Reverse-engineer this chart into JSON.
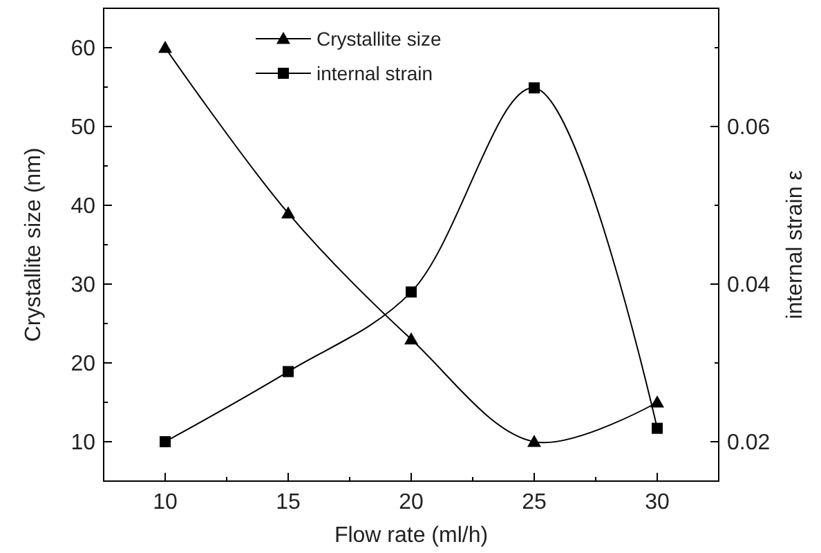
{
  "chart_data": {
    "type": "line",
    "xlabel": "Flow rate (ml/h)",
    "ylabel": "Crystallite size (nm)",
    "y2label": "internal strain ε",
    "x": [
      10,
      15,
      20,
      25,
      30
    ],
    "series": [
      {
        "name": "Crystallite size",
        "color": "#000000",
        "values": [
          60,
          39,
          23,
          10,
          15
        ],
        "marker": "triangle"
      },
      {
        "name": "internal strain",
        "color": "#000000",
        "values": [
          0.02,
          0.0289,
          0.039,
          0.0649,
          0.0217
        ],
        "marker": "square",
        "axis": "y2"
      }
    ],
    "xlim": [
      7.5,
      32.5
    ],
    "xticks": [
      10,
      {
        "value": 12.5,
        "label": null
      },
      15,
      {
        "value": 17.5,
        "label": null
      },
      20,
      {
        "value": 22.5,
        "label": null
      },
      25,
      {
        "value": 27.5,
        "label": null
      },
      30
    ],
    "ylim": [
      5,
      65
    ],
    "yticks": [
      10,
      {
        "value": 15,
        "label": null
      },
      20,
      {
        "value": 25,
        "label": null
      },
      30,
      {
        "value": 35,
        "label": null
      },
      40,
      {
        "value": 45,
        "label": null
      },
      50,
      {
        "value": 55,
        "label": null
      },
      60
    ],
    "y2lim": [
      0.015,
      0.075
    ],
    "y2ticks": [
      {
        "value": 0.02,
        "label": "0.02"
      },
      {
        "value": 0.03,
        "label": null
      },
      {
        "value": 0.04,
        "label": "0.04"
      },
      {
        "value": 0.05,
        "label": null
      },
      {
        "value": 0.06,
        "label": "0.06"
      },
      {
        "value": 0.07,
        "label": null
      }
    ],
    "grid": false,
    "legend": "top",
    "line_style": "solid"
  }
}
